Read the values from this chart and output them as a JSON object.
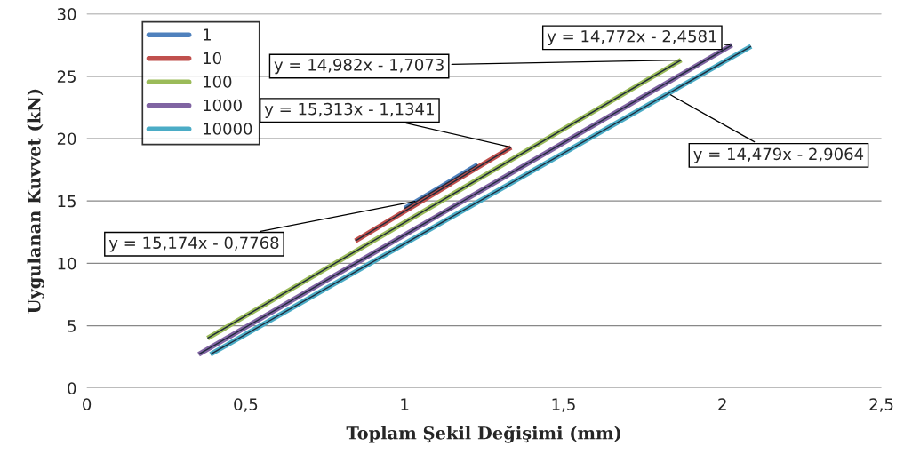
{
  "chart_data": {
    "type": "line",
    "xlabel": "Toplam Şekil Değişimi (mm)",
    "ylabel": "Uygulanan Kuvvet (kN)",
    "xlim": [
      0,
      2.5
    ],
    "ylim": [
      0,
      30
    ],
    "xticks": [
      0,
      {
        "value": 0.5,
        "label": "0,5"
      },
      1,
      {
        "value": 1.5,
        "label": "1,5"
      },
      2,
      {
        "value": 2.5,
        "label": "2,5"
      }
    ],
    "yticks": [
      0,
      5,
      10,
      15,
      20,
      25,
      30
    ],
    "grid": "y",
    "legend": "top left",
    "marker": "none",
    "line_style": "solid",
    "series": [
      {
        "name": "1",
        "color": "#4f81bd",
        "x": [
          1.0,
          1.23
        ],
        "values": [
          14.4,
          17.9
        ]
      },
      {
        "name": "10",
        "color": "#c0504d",
        "x": [
          0.845,
          1.335
        ],
        "values": [
          11.8,
          19.3
        ]
      },
      {
        "name": "100",
        "color": "#9bbb59",
        "x": [
          0.38,
          1.87
        ],
        "values": [
          4.0,
          26.3
        ]
      },
      {
        "name": "1000",
        "color": "#8064a2",
        "x": [
          0.352,
          2.03
        ],
        "values": [
          2.7,
          27.5
        ]
      },
      {
        "name": "10000",
        "color": "#4bacc6",
        "x": [
          0.389,
          2.09
        ],
        "values": [
          2.7,
          27.4
        ]
      },
      {
        "type": "line",
        "color": "#1f2a3a",
        "x": [
          1.0,
          1.23
        ],
        "values": [
          14.4,
          17.9
        ]
      },
      {
        "type": "line",
        "color": "#1f2a3a",
        "x": [
          0.845,
          1.335
        ],
        "values": [
          11.8,
          19.3
        ]
      },
      {
        "type": "line",
        "color": "#1f2a3a",
        "x": [
          0.38,
          1.87
        ],
        "values": [
          4.0,
          26.3
        ]
      },
      {
        "type": "line",
        "color": "#1f2a3a",
        "x": [
          0.352,
          2.03
        ],
        "values": [
          2.7,
          27.5
        ]
      },
      {
        "type": "line",
        "color": "#1f2a3a",
        "x": [
          0.389,
          2.09
        ],
        "values": [
          2.7,
          27.4
        ]
      }
    ],
    "annotations": [
      {
        "text": "y = 14,772x - 2,4581",
        "x": 2.03,
        "y": 27.5
      },
      {
        "text": "y = 14,982x - 1,7073",
        "x": 1.87,
        "y": 26.3
      },
      {
        "text": "y = 15,313x - 1,1341",
        "x": 1.335,
        "y": 19.3
      },
      {
        "text": "y = 15,174x - 0,7768",
        "x": 1.04,
        "y": 15.0
      },
      {
        "text": "y = 14,479x - 2,9064",
        "x": 1.83,
        "y": 23.6
      }
    ]
  }
}
